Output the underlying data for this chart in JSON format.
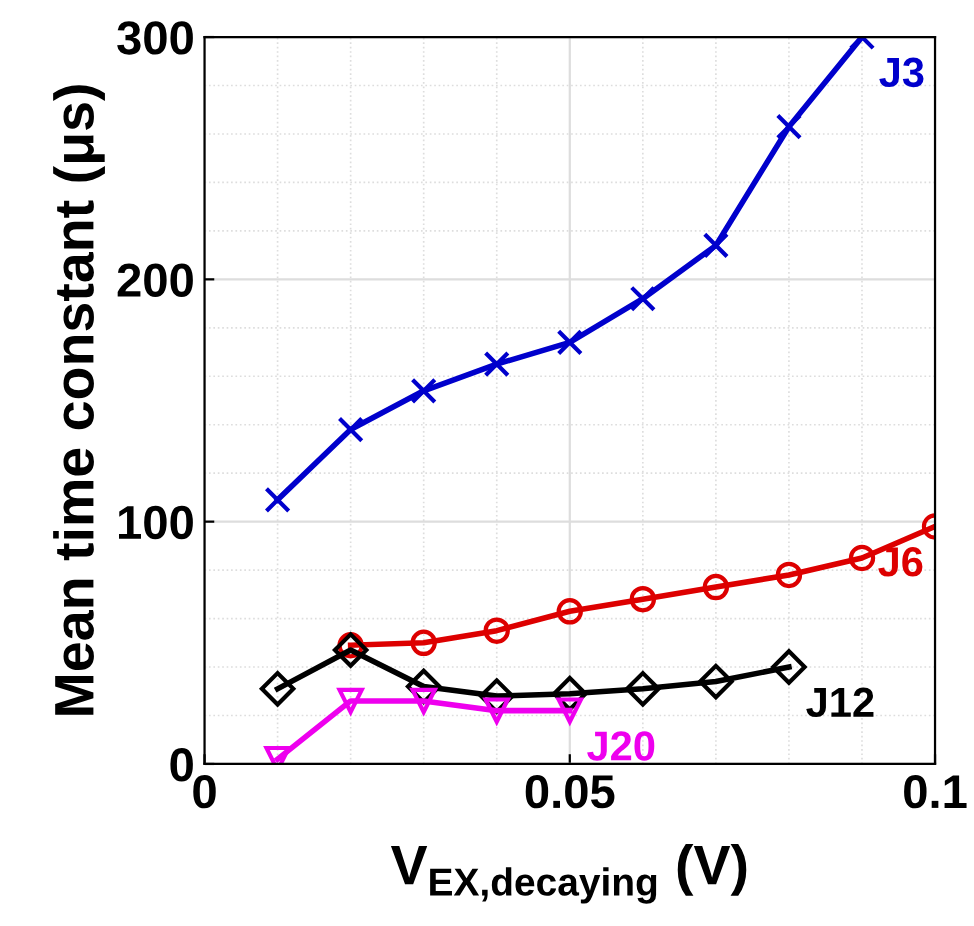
{
  "chart_data": {
    "type": "line",
    "xlabel": "V$_{EX,decaying}$ (V)",
    "ylabel": "Mean time constant (μs)",
    "xlim": [
      0,
      0.1
    ],
    "ylim": [
      0,
      300
    ],
    "xticks": [
      0,
      0.05,
      0.1
    ],
    "yticks": [
      0,
      100,
      200,
      300
    ],
    "grid": true,
    "series": [
      {
        "name": "J3",
        "color": "#0000cc",
        "marker": "cross",
        "x": [
          0.01,
          0.02,
          0.03,
          0.04,
          0.05,
          0.06,
          0.07,
          0.08,
          0.09
        ],
        "values": [
          109,
          138,
          154,
          165,
          174,
          192,
          214,
          263,
          300
        ]
      },
      {
        "name": "J6",
        "color": "#dd0000",
        "marker": "circle",
        "x": [
          0.02,
          0.03,
          0.04,
          0.05,
          0.06,
          0.07,
          0.08,
          0.09,
          0.1
        ],
        "values": [
          49,
          50,
          55,
          63,
          68,
          73,
          78,
          85,
          98
        ]
      },
      {
        "name": "J12",
        "color": "#000000",
        "marker": "diamond",
        "x": [
          0.01,
          0.02,
          0.03,
          0.04,
          0.05,
          0.06,
          0.07,
          0.08
        ],
        "values": [
          31,
          47,
          32,
          28,
          29,
          31,
          34,
          40
        ]
      },
      {
        "name": "J20",
        "color": "#ee00ee",
        "marker": "triangle",
        "x": [
          0.01,
          0.02,
          0.03,
          0.04,
          0.05
        ],
        "values": [
          2,
          26,
          26,
          22,
          22
        ]
      }
    ]
  }
}
